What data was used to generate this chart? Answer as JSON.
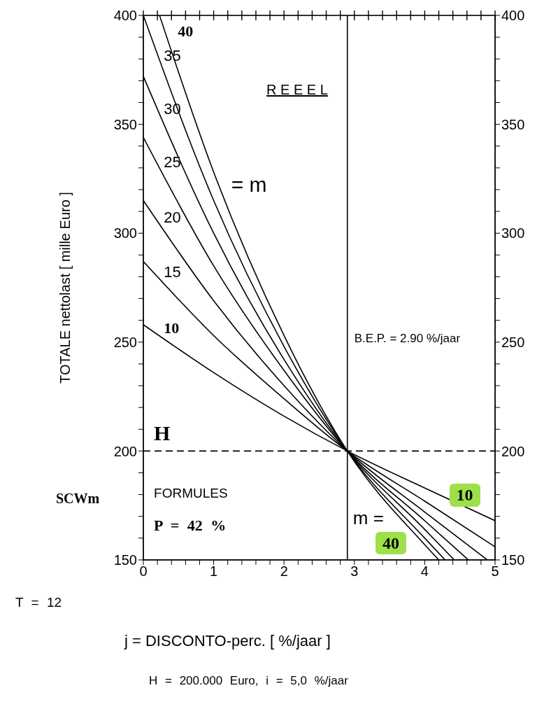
{
  "chart_data": {
    "type": "line",
    "title": "R E E E L",
    "xlabel": "j = DISCONTO-perc. [ %/jaar ]",
    "ylabel": "TOTALE nettolast [ mille Euro ]",
    "xlim": [
      0,
      5
    ],
    "ylim": [
      150,
      400
    ],
    "y2lim": [
      150,
      400
    ],
    "xticks": [
      0,
      {
        "value": 0.2,
        "label": null
      },
      {
        "value": 0.4,
        "label": null
      },
      {
        "value": 0.6,
        "label": null
      },
      {
        "value": 0.8,
        "label": null
      },
      1,
      {
        "value": 1.2,
        "label": null
      },
      {
        "value": 1.4,
        "label": null
      },
      {
        "value": 1.6,
        "label": null
      },
      {
        "value": 1.8,
        "label": null
      },
      2,
      {
        "value": 2.2,
        "label": null
      },
      {
        "value": 2.4,
        "label": null
      },
      {
        "value": 2.6,
        "label": null
      },
      {
        "value": 2.8,
        "label": null
      },
      3,
      {
        "value": 3.2,
        "label": null
      },
      {
        "value": 3.4,
        "label": null
      },
      {
        "value": 3.6,
        "label": null
      },
      {
        "value": 3.8,
        "label": null
      },
      4,
      {
        "value": 4.2,
        "label": null
      },
      {
        "value": 4.4,
        "label": null
      },
      {
        "value": 4.6,
        "label": null
      },
      {
        "value": 4.8,
        "label": null
      },
      5
    ],
    "yticks": [
      150,
      {
        "value": 160,
        "label": null
      },
      {
        "value": 170,
        "label": null
      },
      {
        "value": 180,
        "label": null
      },
      {
        "value": 190,
        "label": null
      },
      200,
      {
        "value": 210,
        "label": null
      },
      {
        "value": 220,
        "label": null
      },
      {
        "value": 230,
        "label": null
      },
      {
        "value": 240,
        "label": null
      },
      250,
      {
        "value": 260,
        "label": null
      },
      {
        "value": 270,
        "label": null
      },
      {
        "value": 280,
        "label": null
      },
      {
        "value": 290,
        "label": null
      },
      300,
      {
        "value": 310,
        "label": null
      },
      {
        "value": 320,
        "label": null
      },
      {
        "value": 330,
        "label": null
      },
      {
        "value": 340,
        "label": null
      },
      350,
      {
        "value": 360,
        "label": null
      },
      {
        "value": 370,
        "label": null
      },
      {
        "value": 380,
        "label": null
      },
      {
        "value": 390,
        "label": null
      },
      400
    ],
    "y2ticks": [
      150,
      {
        "value": 160,
        "label": null
      },
      {
        "value": 170,
        "label": null
      },
      {
        "value": 180,
        "label": null
      },
      {
        "value": 190,
        "label": null
      },
      200,
      {
        "value": 210,
        "label": null
      },
      {
        "value": 220,
        "label": null
      },
      {
        "value": 230,
        "label": null
      },
      {
        "value": 240,
        "label": null
      },
      250,
      {
        "value": 260,
        "label": null
      },
      {
        "value": 270,
        "label": null
      },
      {
        "value": 280,
        "label": null
      },
      {
        "value": 290,
        "label": null
      },
      300,
      {
        "value": 310,
        "label": null
      },
      {
        "value": 320,
        "label": null
      },
      {
        "value": 330,
        "label": null
      },
      {
        "value": 340,
        "label": null
      },
      350,
      {
        "value": 360,
        "label": null
      },
      {
        "value": 370,
        "label": null
      },
      {
        "value": 380,
        "label": null
      },
      {
        "value": 390,
        "label": null
      },
      400
    ],
    "series": [
      {
        "name": "10",
        "color": "#000000",
        "x": [
          0,
          1,
          2,
          2.9,
          4,
          5
        ],
        "values": [
          258,
          236,
          216,
          200,
          183,
          168
        ]
      },
      {
        "name": "15",
        "color": "#000000",
        "x": [
          0,
          1,
          2,
          2.9,
          4,
          5
        ],
        "values": [
          287,
          253,
          224,
          200,
          177,
          156
        ]
      },
      {
        "name": "20",
        "color": "#000000",
        "x": [
          0,
          1,
          2,
          2.9,
          4,
          4.89
        ],
        "values": [
          315,
          269,
          230,
          200,
          172,
          150
        ]
      },
      {
        "name": "25",
        "color": "#000000",
        "x": [
          0,
          1,
          2,
          2.9,
          4,
          4.62
        ],
        "values": [
          344,
          285,
          237,
          200,
          168,
          150
        ]
      },
      {
        "name": "30",
        "color": "#000000",
        "x": [
          0,
          1,
          2,
          2.9,
          4,
          4.42
        ],
        "values": [
          372,
          300,
          242,
          200,
          164,
          150
        ]
      },
      {
        "name": "35",
        "color": "#000000",
        "x": [
          0,
          1,
          2,
          2.9,
          4,
          4.29
        ],
        "values": [
          400,
          315,
          248,
          200,
          160,
          150
        ]
      },
      {
        "name": "40",
        "color": "#000000",
        "x": [
          0.23,
          1,
          2,
          2.9,
          4,
          4.2
        ],
        "values": [
          400,
          328,
          253,
          200,
          157,
          150
        ]
      }
    ],
    "ref_lines": [
      {
        "axis": "y",
        "value": 200,
        "line_style": "dashed"
      },
      {
        "axis": "x",
        "value": 2.9,
        "label": "B.E.P. = 2.90 %/jaar"
      }
    ],
    "annotations": [
      "= m",
      "m =",
      "H",
      "FORMULES",
      "P = 42 %",
      "SCWm",
      "T = 12",
      "H = 200.000 Euro, i = 5,0 %/jaar",
      "10",
      "40"
    ]
  }
}
